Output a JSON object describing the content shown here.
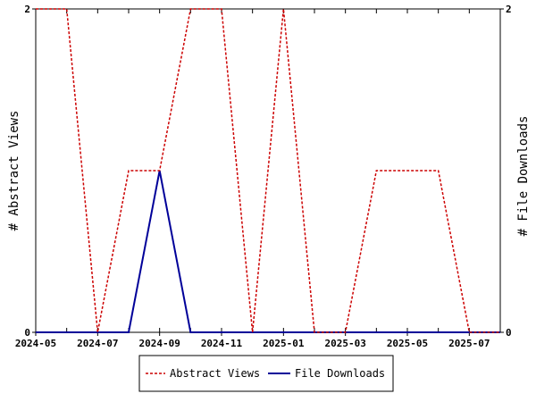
{
  "chart_data": {
    "type": "line",
    "x": [
      "2024-05",
      "2024-06",
      "2024-07",
      "2024-08",
      "2024-09",
      "2024-10",
      "2024-11",
      "2024-12",
      "2025-01",
      "2025-02",
      "2025-03",
      "2025-04",
      "2025-05",
      "2025-06",
      "2025-07",
      "2025-08"
    ],
    "x_tick_labels": [
      "2024-05",
      "2024-07",
      "2024-09",
      "2024-11",
      "2025-01",
      "2025-03",
      "2025-05",
      "2025-07"
    ],
    "series": [
      {
        "name": "Abstract Views",
        "axis": "left",
        "color": "#cc0000",
        "style": "dashed",
        "values": [
          2,
          2,
          0,
          1,
          1,
          2,
          2,
          0,
          2,
          0,
          0,
          1,
          1,
          1,
          0,
          0
        ]
      },
      {
        "name": "File Downloads",
        "axis": "right",
        "color": "#000099",
        "style": "solid",
        "values": [
          0,
          0,
          0,
          0,
          1,
          0,
          0,
          0,
          0,
          0,
          0,
          0,
          0,
          0,
          0,
          0
        ]
      }
    ],
    "ylabel": "# Abstract Views",
    "y2label": "# File Downloads",
    "ylim": [
      0,
      2
    ],
    "y2lim": [
      0,
      2
    ],
    "y_ticks": [
      "0",
      "2"
    ],
    "y2_ticks": [
      "0",
      "2"
    ],
    "grid": false,
    "legend_position": "bottom-center"
  }
}
